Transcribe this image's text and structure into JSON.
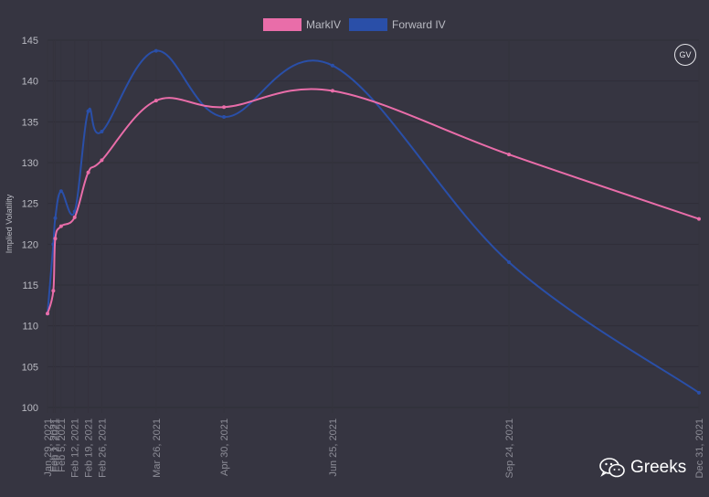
{
  "chart_data": {
    "type": "line",
    "title": "",
    "xlabel": "",
    "ylabel": "Implied Volatility",
    "ylim": [
      100,
      145
    ],
    "y_ticks": [
      100,
      105,
      110,
      115,
      120,
      125,
      130,
      135,
      140,
      145
    ],
    "x": [
      "Jan 29, 2021",
      "Feb 1, 2021",
      "Feb 2, 2021",
      "Feb 5, 2021",
      "Feb 12, 2021",
      "Feb 19, 2021",
      "Feb 26, 2021",
      "Mar 26, 2021",
      "Apr 30, 2021",
      "Jun 25, 2021",
      "Sep 24, 2021",
      "Dec 31, 2021"
    ],
    "x_days": [
      0,
      3,
      4,
      7,
      14,
      21,
      28,
      56,
      91,
      147,
      238,
      336
    ],
    "grid": true,
    "legend_position": "top-center",
    "series": [
      {
        "name": "MarkIV",
        "color": "#e96da9",
        "values": [
          111.5,
          114.3,
          120.7,
          122.2,
          123.3,
          128.8,
          130.3,
          137.6,
          136.8,
          138.8,
          131.0,
          123.1
        ]
      },
      {
        "name": "Forward IV",
        "color": "#2a4fa8",
        "values": [
          111.5,
          120.0,
          123.2,
          126.5,
          124.0,
          136.3,
          133.8,
          143.7,
          135.6,
          141.9,
          117.8,
          101.8
        ]
      }
    ]
  },
  "badge": {
    "text": "GV"
  },
  "watermark": {
    "text": "Greeks",
    "icon": "wechat-icon"
  }
}
